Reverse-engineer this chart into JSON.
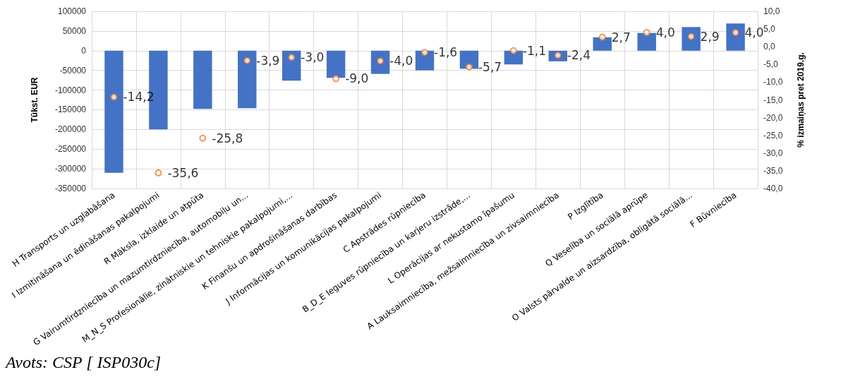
{
  "chart_data": {
    "type": "bar",
    "categories": [
      "H Transports un uzglabāšana",
      "I Izmitināšana un ēdināšanas pakalpojumi",
      "R Māksla, izklaide un atpūta",
      "G Vairumtirdzniecība un mazumtirdzniecība, automobiļu un...",
      "M_N_S Profesionālie, zinātniskie un tehniskie pakalpojumi,...",
      "K Finanšu un apdrošināšanas darbības",
      "J Informācijas un komunikācijas pakalpojumi",
      "C Apstrādes rūpniecība",
      "B_D_E Ieguves rūpniecība un karjeru izstrāde,...",
      "L Operācijas ar nekustamo īpašumu",
      "A Lauksaimniecība, mežsaimniecība un zivsaimniecība",
      "P Izglītība",
      "Q Veselība un sociālā aprūpe",
      "O Valsts pārvalde un aizsardzība, obligātā sociālā...",
      "F Būvniecība"
    ],
    "series": [
      {
        "color": "#4472c4",
        "values": [
          -310000,
          -200000,
          -148000,
          -146000,
          -76000,
          -69000,
          -59000,
          -50000,
          -46000,
          -35000,
          -27000,
          34000,
          45000,
          60000,
          69000
        ]
      },
      {
        "type": "scatter",
        "axis": "y2",
        "color": "#ed7d31",
        "marker": "circle",
        "values": [
          -14.2,
          -35.6,
          -25.8,
          -3.9,
          -3.0,
          -9.0,
          -4.0,
          -1.6,
          -5.7,
          -1.1,
          -2.4,
          2.7,
          4.0,
          2.9,
          4.0
        ],
        "value_labels": [
          "-14,2",
          "-35,6",
          "-25,8",
          "-3,9",
          "-3,0",
          "-9,0",
          "-4,0",
          "-1,6",
          "-5,7",
          "-1,1",
          "-2,4",
          "2,7",
          "4,0",
          "2,9",
          "4,0"
        ]
      }
    ],
    "ylabel": "Tūkst. EUR",
    "y2label": "% izmaiņas pret 2019.g.",
    "ylim": [
      -350000,
      100000
    ],
    "yticks": [
      -350000,
      -300000,
      -250000,
      -200000,
      -150000,
      -100000,
      -50000,
      0,
      50000,
      100000
    ],
    "y2lim": [
      -40,
      10
    ],
    "y2ticks": [
      {
        "value": -40,
        "label": "-40,0"
      },
      {
        "value": -35,
        "label": "-35,0"
      },
      {
        "value": -30,
        "label": "-30,0"
      },
      {
        "value": -25,
        "label": "-25,0"
      },
      {
        "value": -20,
        "label": "-20,0"
      },
      {
        "value": -15,
        "label": "-15,0"
      },
      {
        "value": -10,
        "label": "-10,0"
      },
      {
        "value": -5,
        "label": "-5,0"
      },
      {
        "value": 0,
        "label": "0,0"
      },
      {
        "value": 5,
        "label": "5,0"
      },
      {
        "value": 10,
        "label": "10,0"
      }
    ],
    "grid": true,
    "legend": false,
    "annotations": [
      "Avots: CSP [ ISP030c]"
    ]
  }
}
